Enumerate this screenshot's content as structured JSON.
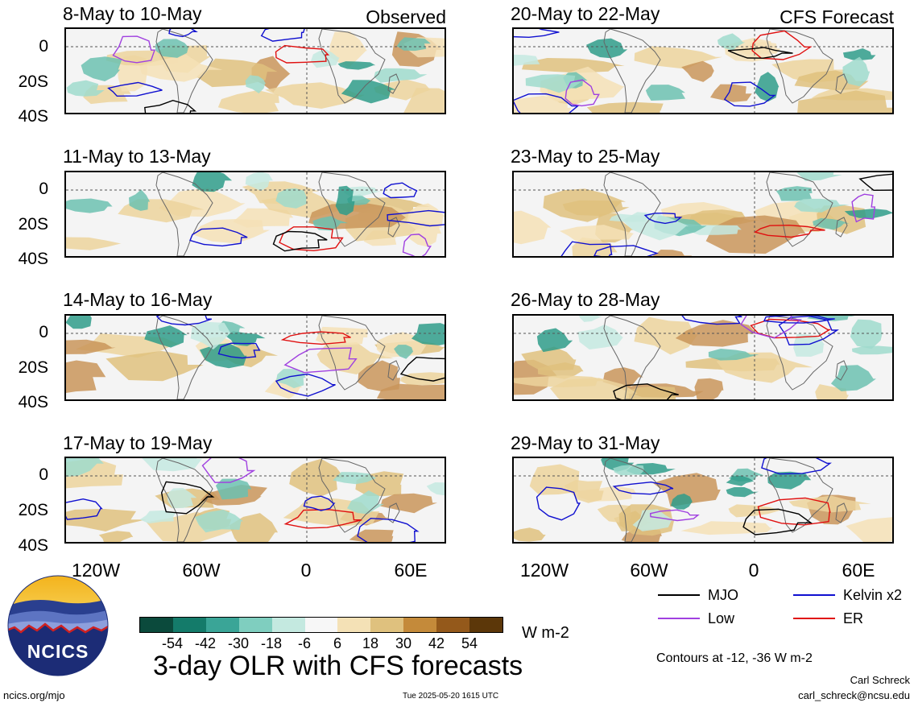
{
  "panels_observed": {
    "tag": "Observed",
    "titles": [
      "8-May to 10-May",
      "11-May to 13-May",
      "14-May to 16-May",
      "17-May to 19-May"
    ]
  },
  "panels_forecast": {
    "tag": "CFS Forecast",
    "titles": [
      "20-May to 22-May",
      "23-May to 25-May",
      "26-May to 28-May",
      "29-May to 31-May"
    ]
  },
  "lat_labels": [
    "0",
    "20S",
    "40S"
  ],
  "lon_labels": [
    "120W",
    "60W",
    "0",
    "60E"
  ],
  "legend": {
    "mjo": "MJO",
    "kelvin": "Kelvin x2",
    "low": "Low",
    "er": "ER",
    "colors": {
      "mjo": "#000000",
      "kelvin": "#1010d0",
      "low": "#a040e0",
      "er": "#e01010"
    }
  },
  "colorbar": {
    "ticks": [
      "-54",
      "-42",
      "-30",
      "-18",
      "-6",
      "6",
      "18",
      "30",
      "42",
      "54"
    ],
    "colors": [
      "#0b4a3c",
      "#147b6a",
      "#3aa597",
      "#7fcebf",
      "#c4e9e0",
      "#f7f7f7",
      "#f4e1b6",
      "#dfc17e",
      "#c48a3a",
      "#94591b",
      "#5c3709"
    ],
    "unit": "W m-2"
  },
  "title": "3-day OLR with CFS forecasts",
  "contours_note": "Contours at -12, -36 W m-2",
  "author": "Carl Schreck",
  "email": "carl_schreck@ncsu.edu",
  "website": "ncics.org/mjo",
  "timestamp": "Tue 2025-05-20 1615 UTC",
  "logo_text": "NCICS"
}
